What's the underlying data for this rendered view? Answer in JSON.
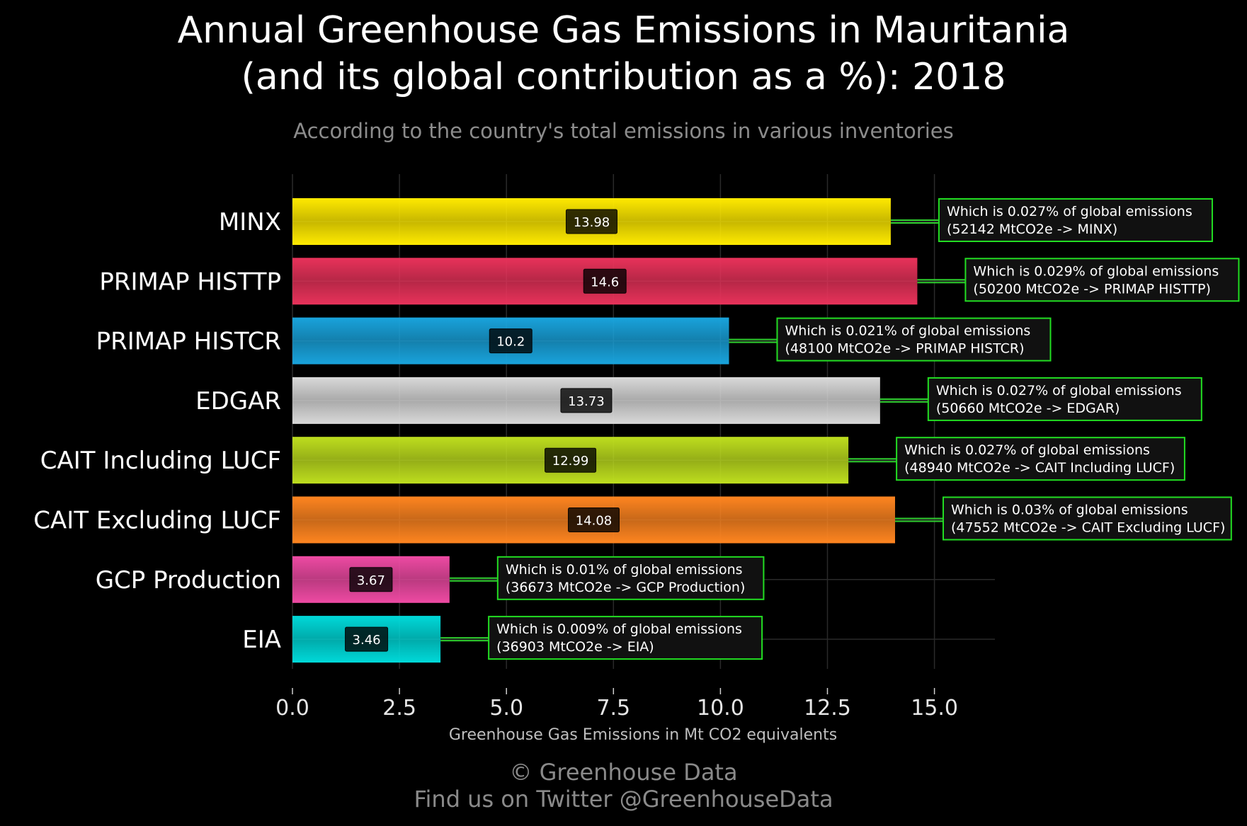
{
  "title_lines": [
    "Annual Greenhouse Gas Emissions in Mauritania",
    "(and its global contribution as a %): 2018"
  ],
  "subtitle": "According to the country's total emissions in various inventories",
  "footer_lines": [
    "© Greenhouse Data",
    "Find us on Twitter @GreenhouseData"
  ],
  "chart_data": {
    "type": "bar",
    "orientation": "horizontal",
    "title": "Annual Greenhouse Gas Emissions in Mauritania (and its global contribution as a %): 2018",
    "subtitle": "According to the country's total emissions in various inventories",
    "xlabel": "Greenhouse Gas Emissions in Mt CO2 equivalents",
    "ylabel": "",
    "xlim": [
      0,
      16.4
    ],
    "xticks": [
      0,
      2.5,
      5,
      7.5,
      10,
      12.5,
      15
    ],
    "xtick_labels": [
      "0.0",
      "2.5",
      "5.0",
      "7.5",
      "10.0",
      "12.5",
      "15.0"
    ],
    "grid": true,
    "categories": [
      "MINX",
      "PRIMAP HISTTP",
      "PRIMAP HISTCR",
      "EDGAR",
      "CAIT Including LUCF",
      "CAIT Excluding LUCF",
      "GCP Production",
      "EIA"
    ],
    "values": [
      13.98,
      14.6,
      10.2,
      13.73,
      12.99,
      14.08,
      3.67,
      3.46
    ],
    "value_labels": [
      "13.98",
      "14.6",
      "10.2",
      "13.73",
      "12.99",
      "14.08",
      "3.67",
      "3.46"
    ],
    "colors": [
      "#ffea00",
      "#e8325a",
      "#19a3dc",
      "#d9d9d9",
      "#bede1e",
      "#ff8520",
      "#ee4aa3",
      "#00d9d9"
    ],
    "annotations": [
      {
        "line1": "Which is 0.027% of global emissions",
        "line2": "(52142 MtCO2e -> MINX)"
      },
      {
        "line1": "Which is 0.029% of global emissions",
        "line2": "(50200 MtCO2e -> PRIMAP HISTTP)"
      },
      {
        "line1": "Which is 0.021% of global emissions",
        "line2": "(48100 MtCO2e -> PRIMAP HISTCR)"
      },
      {
        "line1": "Which is 0.027% of global emissions",
        "line2": "(50660 MtCO2e -> EDGAR)"
      },
      {
        "line1": "Which is 0.027% of global emissions",
        "line2": "(48940 MtCO2e -> CAIT Including LUCF)"
      },
      {
        "line1": "Which is 0.03% of global emissions",
        "line2": "(47552 MtCO2e -> CAIT Excluding LUCF)"
      },
      {
        "line1": "Which is 0.01% of global emissions",
        "line2": "(36673 MtCO2e -> GCP Production)"
      },
      {
        "line1": "Which is 0.009% of global emissions",
        "line2": "(36903 MtCO2e -> EIA)"
      }
    ]
  }
}
